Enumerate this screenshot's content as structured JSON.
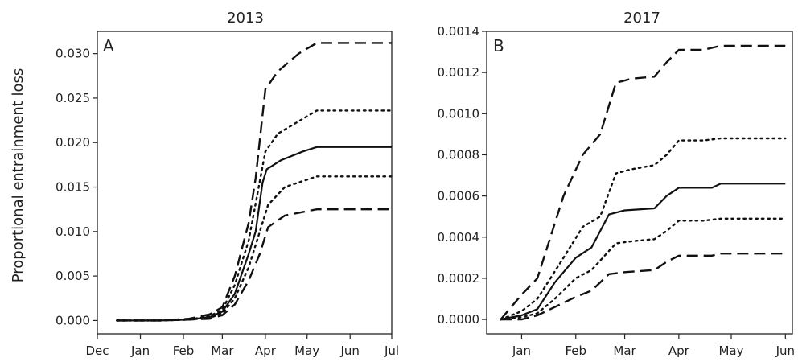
{
  "figure": {
    "ylabel": "Proportional entrainment loss"
  },
  "chart_data": [
    {
      "type": "line",
      "title": "2013",
      "panel_label": "A",
      "xlabel": "",
      "ylabel": "Proportional entrainment loss",
      "x_ticks": [
        "Dec",
        "Jan",
        "Feb",
        "Mar",
        "Apr",
        "May",
        "Jun",
        "Jul"
      ],
      "xlim": [
        "2012-12-01",
        "2013-07-01"
      ],
      "y_ticks": [
        "0.000",
        "0.005",
        "0.010",
        "0.015",
        "0.020",
        "0.025",
        "0.030"
      ],
      "ylim": [
        -0.0015,
        0.0325
      ],
      "grid": false,
      "series": [
        {
          "style": "dashed",
          "points": [
            [
              "2012-12-15",
              0
            ],
            [
              "2013-01-15",
              0
            ],
            [
              "2013-02-05",
              0.0002
            ],
            [
              "2013-02-20",
              0.0007
            ],
            [
              "2013-03-01",
              0.0015
            ],
            [
              "2013-03-10",
              0.005
            ],
            [
              "2013-03-20",
              0.011
            ],
            [
              "2013-03-25",
              0.016
            ],
            [
              "2013-04-01",
              0.026
            ],
            [
              "2013-04-10",
              0.028
            ],
            [
              "2013-04-25",
              0.03
            ],
            [
              "2013-05-08",
              0.0312
            ],
            [
              "2013-07-01",
              0.0312
            ]
          ]
        },
        {
          "style": "dotted",
          "points": [
            [
              "2012-12-15",
              0
            ],
            [
              "2013-01-15",
              0
            ],
            [
              "2013-02-05",
              0.0001
            ],
            [
              "2013-02-20",
              0.0005
            ],
            [
              "2013-03-01",
              0.0012
            ],
            [
              "2013-03-10",
              0.004
            ],
            [
              "2013-03-20",
              0.009
            ],
            [
              "2013-04-01",
              0.019
            ],
            [
              "2013-04-10",
              0.021
            ],
            [
              "2013-05-08",
              0.0236
            ],
            [
              "2013-07-01",
              0.0236
            ]
          ]
        },
        {
          "style": "solid",
          "points": [
            [
              "2012-12-15",
              0
            ],
            [
              "2013-01-15",
              0
            ],
            [
              "2013-02-05",
              0.0001
            ],
            [
              "2013-02-20",
              0.0004
            ],
            [
              "2013-03-01",
              0.001
            ],
            [
              "2013-03-10",
              0.003
            ],
            [
              "2013-03-20",
              0.0075
            ],
            [
              "2013-03-25",
              0.01
            ],
            [
              "2013-03-30",
              0.0155
            ],
            [
              "2013-04-02",
              0.017
            ],
            [
              "2013-04-12",
              0.018
            ],
            [
              "2013-04-28",
              0.019
            ],
            [
              "2013-05-08",
              0.0195
            ],
            [
              "2013-07-01",
              0.0195
            ]
          ]
        },
        {
          "style": "dotted",
          "points": [
            [
              "2012-12-15",
              0
            ],
            [
              "2013-01-15",
              0
            ],
            [
              "2013-02-05",
              0.0001
            ],
            [
              "2013-02-20",
              0.0003
            ],
            [
              "2013-03-01",
              0.0008
            ],
            [
              "2013-03-10",
              0.0025
            ],
            [
              "2013-03-20",
              0.006
            ],
            [
              "2013-03-28",
              0.01
            ],
            [
              "2013-04-03",
              0.013
            ],
            [
              "2013-04-15",
              0.015
            ],
            [
              "2013-05-08",
              0.0162
            ],
            [
              "2013-07-01",
              0.0162
            ]
          ]
        },
        {
          "style": "dashed",
          "points": [
            [
              "2012-12-15",
              0
            ],
            [
              "2013-01-15",
              0
            ],
            [
              "2013-02-05",
              0.0001
            ],
            [
              "2013-02-20",
              0.0002
            ],
            [
              "2013-03-01",
              0.0006
            ],
            [
              "2013-03-10",
              0.0018
            ],
            [
              "2013-03-20",
              0.0045
            ],
            [
              "2013-03-28",
              0.0075
            ],
            [
              "2013-04-03",
              0.0105
            ],
            [
              "2013-04-15",
              0.0118
            ],
            [
              "2013-05-08",
              0.0125
            ],
            [
              "2013-07-01",
              0.0125
            ]
          ]
        }
      ]
    },
    {
      "type": "line",
      "title": "2017",
      "panel_label": "B",
      "xlabel": "",
      "ylabel": "",
      "x_ticks": [
        "Jan",
        "Feb",
        "Mar",
        "Apr",
        "May",
        "Jun"
      ],
      "xlim": [
        "2016-12-12",
        "2017-06-05"
      ],
      "y_ticks": [
        "0.0000",
        "0.0002",
        "0.0004",
        "0.0006",
        "0.0008",
        "0.0010",
        "0.0012",
        "0.0014"
      ],
      "ylim": [
        -7e-05,
        0.0014
      ],
      "grid": false,
      "series": [
        {
          "style": "dashed",
          "points": [
            [
              "2016-12-20",
              0
            ],
            [
              "2017-01-01",
              0.00012
            ],
            [
              "2017-01-10",
              0.0002
            ],
            [
              "2017-01-25",
              0.0006
            ],
            [
              "2017-02-05",
              0.0008
            ],
            [
              "2017-02-15",
              0.0009
            ],
            [
              "2017-02-24",
              0.00115
            ],
            [
              "2017-03-05",
              0.00117
            ],
            [
              "2017-03-18",
              0.00118
            ],
            [
              "2017-03-25",
              0.00125
            ],
            [
              "2017-04-01",
              0.00131
            ],
            [
              "2017-04-15",
              0.00131
            ],
            [
              "2017-04-25",
              0.00133
            ],
            [
              "2017-06-01",
              0.00133
            ]
          ]
        },
        {
          "style": "dotted",
          "points": [
            [
              "2016-12-20",
              0
            ],
            [
              "2017-01-01",
              4e-05
            ],
            [
              "2017-01-10",
              0.0001
            ],
            [
              "2017-01-25",
              0.0003
            ],
            [
              "2017-02-05",
              0.00045
            ],
            [
              "2017-02-15",
              0.0005
            ],
            [
              "2017-02-24",
              0.00071
            ],
            [
              "2017-03-05",
              0.00073
            ],
            [
              "2017-03-18",
              0.00075
            ],
            [
              "2017-03-25",
              0.0008
            ],
            [
              "2017-04-01",
              0.00087
            ],
            [
              "2017-04-15",
              0.00087
            ],
            [
              "2017-04-25",
              0.00088
            ],
            [
              "2017-06-01",
              0.00088
            ]
          ]
        },
        {
          "style": "solid",
          "points": [
            [
              "2016-12-20",
              0
            ],
            [
              "2017-01-01",
              2e-05
            ],
            [
              "2017-01-10",
              5e-05
            ],
            [
              "2017-01-20",
              0.00018
            ],
            [
              "2017-02-01",
              0.0003
            ],
            [
              "2017-02-10",
              0.00035
            ],
            [
              "2017-02-20",
              0.00051
            ],
            [
              "2017-03-01",
              0.00053
            ],
            [
              "2017-03-18",
              0.00054
            ],
            [
              "2017-03-25",
              0.0006
            ],
            [
              "2017-04-01",
              0.00064
            ],
            [
              "2017-04-20",
              0.00064
            ],
            [
              "2017-04-25",
              0.00066
            ],
            [
              "2017-06-01",
              0.00066
            ]
          ]
        },
        {
          "style": "dotted",
          "points": [
            [
              "2016-12-20",
              0
            ],
            [
              "2017-01-01",
              1e-05
            ],
            [
              "2017-01-10",
              3e-05
            ],
            [
              "2017-01-20",
              0.0001
            ],
            [
              "2017-02-01",
              0.0002
            ],
            [
              "2017-02-10",
              0.00024
            ],
            [
              "2017-02-24",
              0.00037
            ],
            [
              "2017-03-05",
              0.00038
            ],
            [
              "2017-03-18",
              0.00039
            ],
            [
              "2017-03-25",
              0.00043
            ],
            [
              "2017-04-01",
              0.00048
            ],
            [
              "2017-04-15",
              0.00048
            ],
            [
              "2017-04-25",
              0.00049
            ],
            [
              "2017-06-01",
              0.00049
            ]
          ]
        },
        {
          "style": "dashed",
          "points": [
            [
              "2016-12-20",
              0
            ],
            [
              "2017-01-01",
              0
            ],
            [
              "2017-01-10",
              2e-05
            ],
            [
              "2017-01-20",
              6e-05
            ],
            [
              "2017-02-01",
              0.00011
            ],
            [
              "2017-02-10",
              0.00014
            ],
            [
              "2017-02-20",
              0.00022
            ],
            [
              "2017-03-01",
              0.00023
            ],
            [
              "2017-03-18",
              0.00024
            ],
            [
              "2017-03-25",
              0.00028
            ],
            [
              "2017-04-01",
              0.00031
            ],
            [
              "2017-04-20",
              0.00031
            ],
            [
              "2017-04-25",
              0.00032
            ],
            [
              "2017-06-01",
              0.00032
            ]
          ]
        }
      ]
    }
  ]
}
